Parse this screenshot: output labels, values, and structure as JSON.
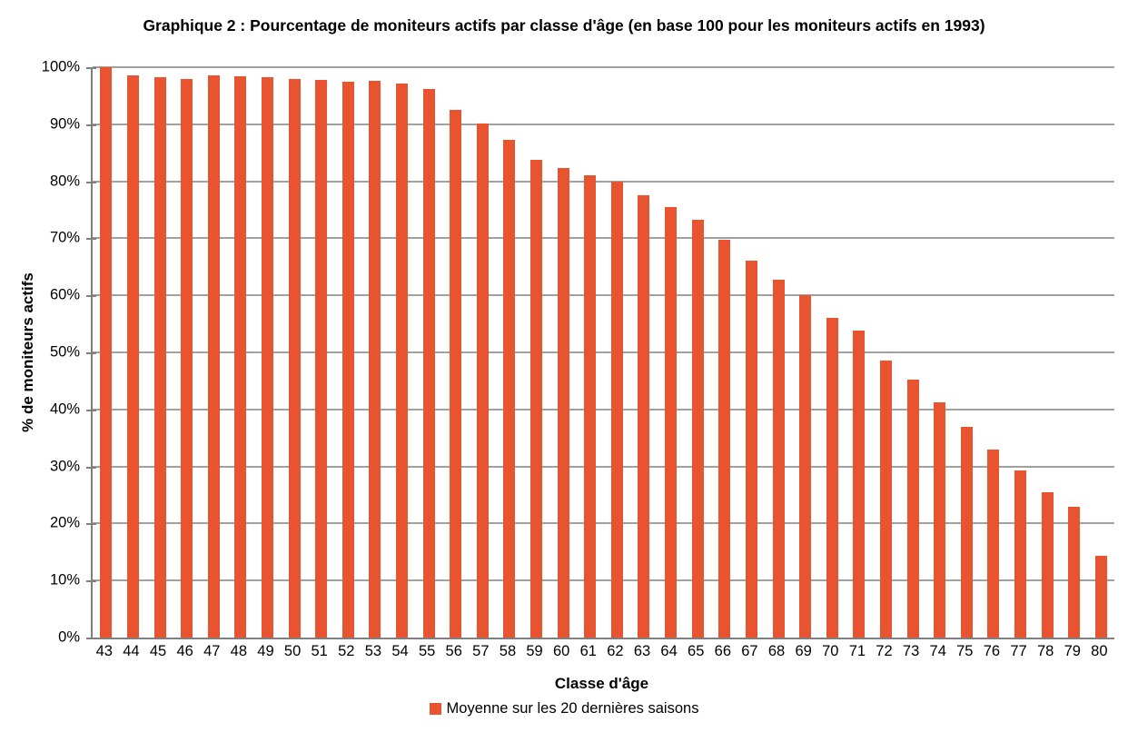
{
  "chart_data": {
    "type": "bar",
    "title": "Graphique 2 : Pourcentage de moniteurs actifs par classe d'âge (en base 100 pour les moniteurs actifs en 1993)",
    "xlabel": "Classe d'âge",
    "ylabel": "% de moniteurs actifs",
    "legend": [
      "Moyenne sur les 20 dernières saisons"
    ],
    "legend_position": "bottom-center",
    "grid": "horizontal",
    "ylim": [
      0,
      100
    ],
    "ytick_step": 10,
    "ytick_suffix": "%",
    "categories": [
      43,
      44,
      45,
      46,
      47,
      48,
      49,
      50,
      51,
      52,
      53,
      54,
      55,
      56,
      57,
      58,
      59,
      60,
      61,
      62,
      63,
      64,
      65,
      66,
      67,
      68,
      69,
      70,
      71,
      72,
      73,
      74,
      75,
      76,
      77,
      78,
      79,
      80
    ],
    "series": [
      {
        "name": "Moyenne sur les 20 dernières saisons",
        "values": [
          100,
          98.5,
          98.3,
          98.0,
          98.5,
          98.4,
          98.2,
          97.9,
          97.7,
          97.4,
          97.6,
          97.2,
          96.2,
          92.5,
          90.1,
          87.2,
          83.7,
          82.3,
          81.1,
          80.0,
          77.5,
          75.5,
          73.2,
          69.7,
          66.1,
          62.7,
          60.1,
          56.0,
          53.8,
          48.6,
          45.3,
          41.2,
          36.9,
          33.0,
          29.3,
          25.5,
          23.0,
          14.3
        ]
      }
    ],
    "colors": {
      "bar": "#e85430",
      "gridline": "#a0a0a0",
      "axis": "#7f7f7f",
      "text": "#000000"
    }
  }
}
